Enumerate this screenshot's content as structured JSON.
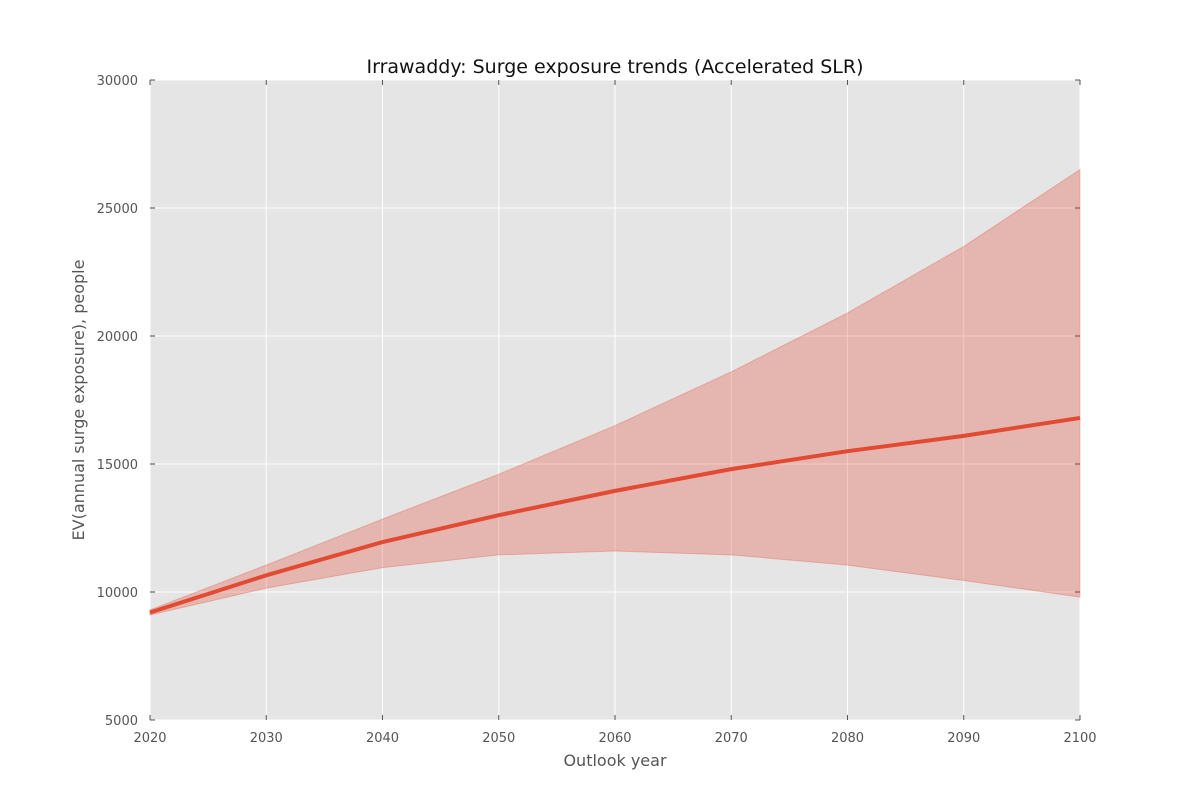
{
  "chart_data": {
    "type": "line",
    "title": "Irrawaddy: Surge exposure trends (Accelerated SLR)",
    "xlabel": "Outlook year",
    "ylabel": "EV(annual surge exposure), people",
    "xlim": [
      2020,
      2100
    ],
    "ylim": [
      5000,
      30000
    ],
    "x_ticks": [
      2020,
      2030,
      2040,
      2050,
      2060,
      2070,
      2080,
      2090,
      2100
    ],
    "y_ticks": [
      5000,
      10000,
      15000,
      20000,
      25000,
      30000
    ],
    "grid": true,
    "x": [
      2020,
      2030,
      2040,
      2050,
      2060,
      2070,
      2080,
      2090,
      2100
    ],
    "series": [
      {
        "type": "line",
        "values": [
          9200,
          10650,
          11950,
          13000,
          13950,
          14800,
          15500,
          16100,
          16800
        ]
      },
      {
        "type": "band",
        "lower": [
          9100,
          10150,
          10950,
          11450,
          11600,
          11450,
          11050,
          10450,
          9800
        ],
        "upper": [
          9300,
          11050,
          12850,
          14600,
          16500,
          18600,
          20900,
          23500,
          26500
        ]
      }
    ],
    "colors": {
      "line": "#e24a33",
      "band": "#e24a33",
      "plot_background": "#e5e5e5",
      "grid": "#ffffff"
    }
  }
}
